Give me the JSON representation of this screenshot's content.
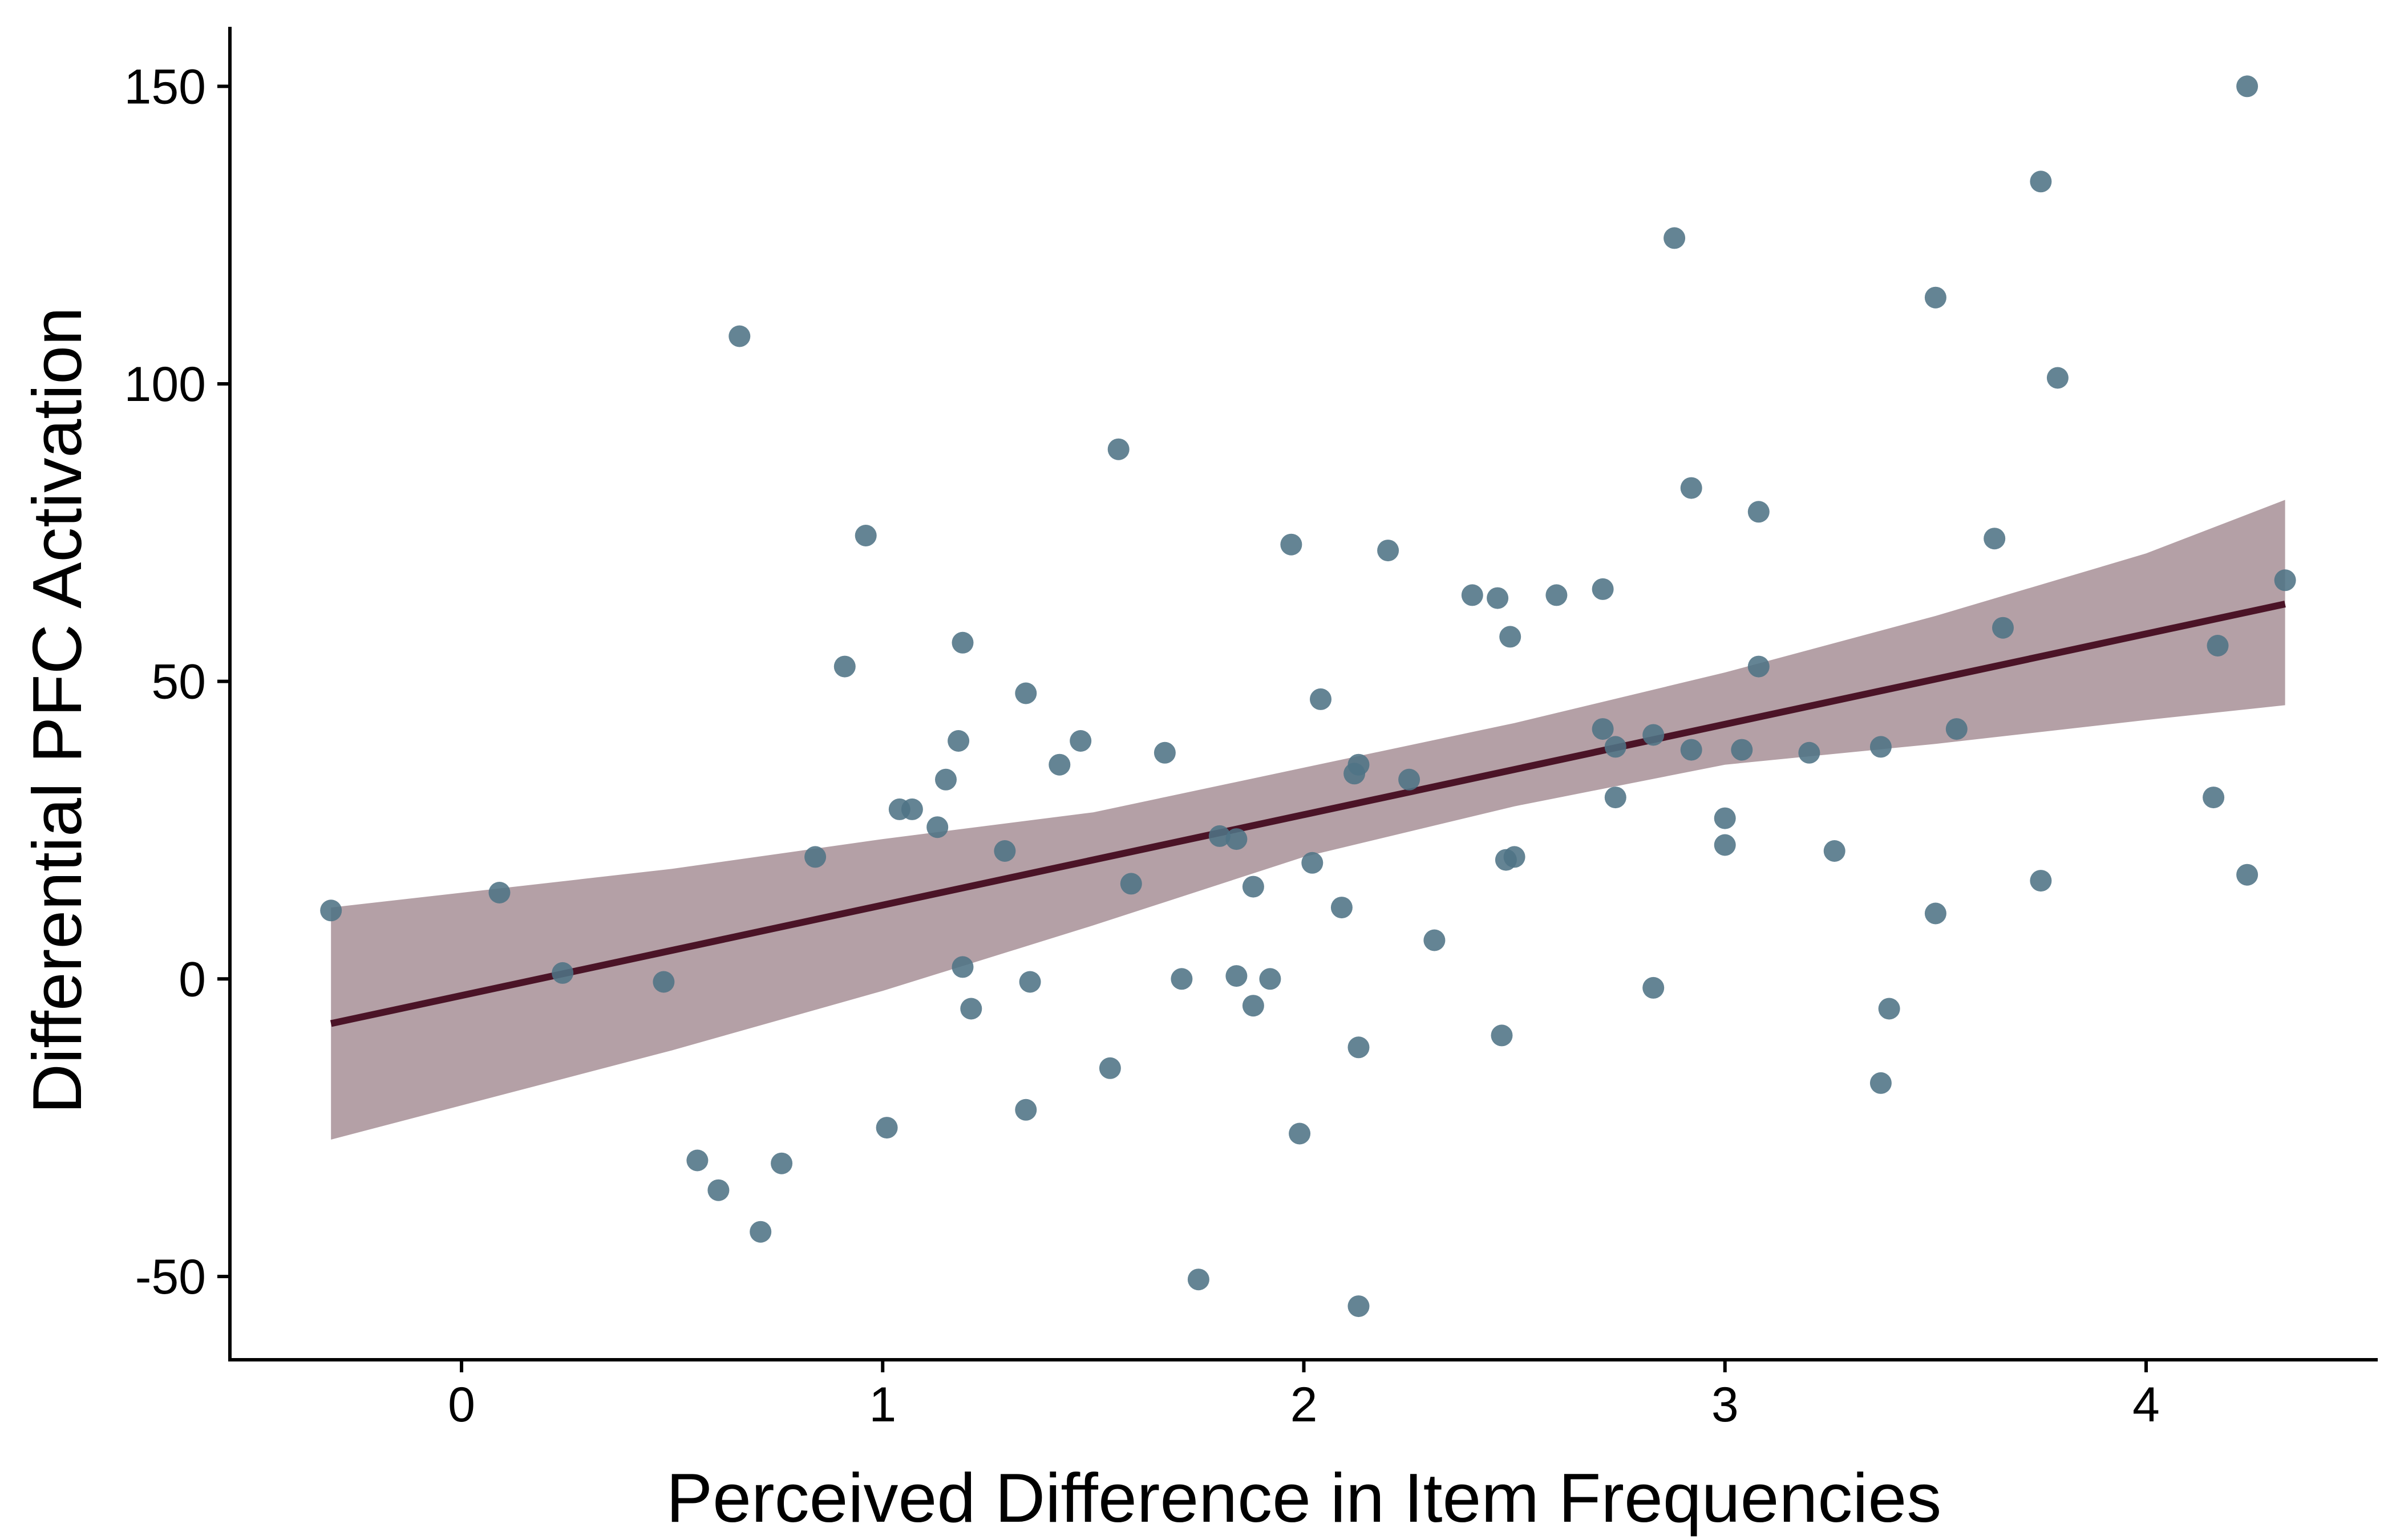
{
  "chart_data": {
    "type": "scatter",
    "title": "",
    "xlabel": "Perceived Difference in Item Frequencies",
    "ylabel": "Differential PFC Activation",
    "xlim": [
      -0.55,
      4.55
    ],
    "ylim": [
      -64,
      160
    ],
    "x_ticks": [
      0,
      1,
      2,
      3,
      4
    ],
    "x_tick_labels": [
      "0",
      "1",
      "2",
      "3",
      "4"
    ],
    "y_ticks": [
      -50,
      0,
      50,
      100,
      150
    ],
    "y_tick_labels": [
      "-50",
      "0",
      "50",
      "100",
      "150"
    ],
    "grid": false,
    "legend": "none",
    "colors": {
      "points": "#4e7385",
      "fit_line": "#4b1427",
      "ribbon": "#b4a0a6",
      "axis": "#000000"
    },
    "points": [
      {
        "x": -0.31,
        "y": 11.5
      },
      {
        "x": 0.09,
        "y": 14.5
      },
      {
        "x": 0.24,
        "y": 1.0
      },
      {
        "x": 0.48,
        "y": -0.5
      },
      {
        "x": 0.56,
        "y": -30.5
      },
      {
        "x": 0.61,
        "y": -35.5
      },
      {
        "x": 0.66,
        "y": 108.0
      },
      {
        "x": 0.71,
        "y": -42.5
      },
      {
        "x": 0.76,
        "y": -31.0
      },
      {
        "x": 0.84,
        "y": 20.5
      },
      {
        "x": 0.91,
        "y": 52.5
      },
      {
        "x": 0.96,
        "y": 74.5
      },
      {
        "x": 1.01,
        "y": -25.0
      },
      {
        "x": 1.04,
        "y": 28.5
      },
      {
        "x": 1.07,
        "y": 28.5
      },
      {
        "x": 1.13,
        "y": 25.5
      },
      {
        "x": 1.15,
        "y": 33.5
      },
      {
        "x": 1.18,
        "y": 40.0
      },
      {
        "x": 1.19,
        "y": 2.0
      },
      {
        "x": 1.19,
        "y": 56.5
      },
      {
        "x": 1.21,
        "y": -5.0
      },
      {
        "x": 1.29,
        "y": 21.5
      },
      {
        "x": 1.34,
        "y": 48.0
      },
      {
        "x": 1.34,
        "y": -22.0
      },
      {
        "x": 1.35,
        "y": -0.5
      },
      {
        "x": 1.42,
        "y": 36.0
      },
      {
        "x": 1.47,
        "y": 40.0
      },
      {
        "x": 1.54,
        "y": -15.0
      },
      {
        "x": 1.56,
        "y": 89.0
      },
      {
        "x": 1.59,
        "y": 16.0
      },
      {
        "x": 1.67,
        "y": 38.0
      },
      {
        "x": 1.71,
        "y": 0.0
      },
      {
        "x": 1.75,
        "y": -50.5
      },
      {
        "x": 1.8,
        "y": 24.0
      },
      {
        "x": 1.84,
        "y": 23.5
      },
      {
        "x": 1.84,
        "y": 0.5
      },
      {
        "x": 1.88,
        "y": 15.5
      },
      {
        "x": 1.88,
        "y": -4.5
      },
      {
        "x": 1.92,
        "y": 0.0
      },
      {
        "x": 1.97,
        "y": 73.0
      },
      {
        "x": 1.99,
        "y": -26.0
      },
      {
        "x": 2.02,
        "y": 19.5
      },
      {
        "x": 2.04,
        "y": 47.0
      },
      {
        "x": 2.09,
        "y": 12.0
      },
      {
        "x": 2.12,
        "y": 34.5
      },
      {
        "x": 2.13,
        "y": 36.0
      },
      {
        "x": 2.13,
        "y": -11.5
      },
      {
        "x": 2.13,
        "y": -55.0
      },
      {
        "x": 2.2,
        "y": 72.0
      },
      {
        "x": 2.25,
        "y": 33.5
      },
      {
        "x": 2.31,
        "y": 6.5
      },
      {
        "x": 2.4,
        "y": 64.5
      },
      {
        "x": 2.46,
        "y": 64.0
      },
      {
        "x": 2.47,
        "y": -9.5
      },
      {
        "x": 2.48,
        "y": 20.0
      },
      {
        "x": 2.49,
        "y": 57.5
      },
      {
        "x": 2.5,
        "y": 20.5
      },
      {
        "x": 2.6,
        "y": 64.5
      },
      {
        "x": 2.71,
        "y": 65.5
      },
      {
        "x": 2.71,
        "y": 42.0
      },
      {
        "x": 2.74,
        "y": 39.0
      },
      {
        "x": 2.74,
        "y": 30.5
      },
      {
        "x": 2.83,
        "y": 41.0
      },
      {
        "x": 2.83,
        "y": -1.5
      },
      {
        "x": 2.88,
        "y": 124.5
      },
      {
        "x": 2.92,
        "y": 82.5
      },
      {
        "x": 2.92,
        "y": 38.5
      },
      {
        "x": 3.0,
        "y": 27.0
      },
      {
        "x": 3.0,
        "y": 22.5
      },
      {
        "x": 3.04,
        "y": 38.5
      },
      {
        "x": 3.08,
        "y": 78.5
      },
      {
        "x": 3.08,
        "y": 52.5
      },
      {
        "x": 3.2,
        "y": 38.0
      },
      {
        "x": 3.26,
        "y": 21.5
      },
      {
        "x": 3.37,
        "y": 39.0
      },
      {
        "x": 3.37,
        "y": -17.5
      },
      {
        "x": 3.39,
        "y": -5.0
      },
      {
        "x": 3.5,
        "y": 114.5
      },
      {
        "x": 3.5,
        "y": 11.0
      },
      {
        "x": 3.55,
        "y": 42.0
      },
      {
        "x": 3.64,
        "y": 74.0
      },
      {
        "x": 3.66,
        "y": 59.0
      },
      {
        "x": 3.75,
        "y": 134.0
      },
      {
        "x": 3.75,
        "y": 16.5
      },
      {
        "x": 3.79,
        "y": 101.0
      },
      {
        "x": 4.16,
        "y": 30.5
      },
      {
        "x": 4.17,
        "y": 56.0
      },
      {
        "x": 4.24,
        "y": 150.0
      },
      {
        "x": 4.24,
        "y": 17.5
      },
      {
        "x": 4.33,
        "y": 67.0
      }
    ],
    "fit": {
      "x_start": -0.31,
      "y_start": -7.5,
      "x_end": 4.33,
      "y_end": 63.0
    },
    "confidence_band": {
      "x": [
        -0.31,
        0.5,
        1.0,
        1.5,
        2.0,
        2.5,
        3.0,
        3.5,
        4.0,
        4.33
      ],
      "upper": [
        12.0,
        18.5,
        23.5,
        28.0,
        35.5,
        43.0,
        51.5,
        61.0,
        71.5,
        80.5
      ],
      "lower": [
        -27.0,
        -12.0,
        -2.0,
        9.0,
        20.5,
        29.0,
        36.0,
        39.5,
        43.5,
        46.0
      ]
    }
  }
}
